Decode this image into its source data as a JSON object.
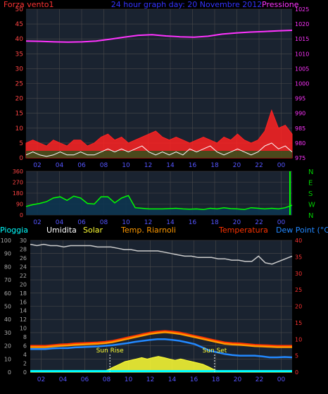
{
  "chart_data": [
    {
      "type": "line",
      "header": {
        "left": "Forza vento1",
        "center": "24 hour graph day: 20 Novembre 2012",
        "right": "Pressione"
      },
      "x_ticks": [
        "02",
        "04",
        "06",
        "08",
        "10",
        "12",
        "14",
        "16",
        "18",
        "20",
        "22",
        "00"
      ],
      "y_left": {
        "ylim": [
          0,
          50
        ],
        "ticks": [
          "0",
          "5",
          "10",
          "15",
          "20",
          "25",
          "30",
          "35",
          "40",
          "45",
          "50"
        ]
      },
      "y_right": {
        "ylim": [
          975,
          1025
        ],
        "ticks": [
          "975",
          "980",
          "985",
          "990",
          "995",
          "1000",
          "1005",
          "1010",
          "1015",
          "1020",
          "1025"
        ]
      },
      "series": [
        {
          "key": "pressure",
          "color": "#ff33ff",
          "axis": "right",
          "values": [
            1014.3,
            1014.2,
            1014.0,
            1013.9,
            1014.0,
            1014.3,
            1014.9,
            1015.6,
            1016.2,
            1016.4,
            1016.0,
            1015.7,
            1015.6,
            1015.9,
            1016.6,
            1017.0,
            1017.3,
            1017.5,
            1017.7,
            1017.9
          ]
        },
        {
          "key": "gust",
          "color": "#ff2222",
          "axis": "left",
          "values": [
            5,
            6,
            5,
            4,
            6,
            5,
            4,
            6,
            6,
            4,
            5,
            7,
            8,
            6,
            7,
            5,
            6,
            7,
            8,
            9,
            7,
            6,
            7,
            6,
            5,
            6,
            7,
            6,
            5,
            7,
            6,
            8,
            6,
            5,
            6,
            9,
            16,
            10,
            11,
            8
          ]
        },
        {
          "key": "wind",
          "color": "#ffffff",
          "axis": "left",
          "values": [
            1,
            2,
            1,
            0.5,
            1,
            2,
            1,
            1,
            2,
            1,
            1,
            2,
            3,
            2,
            3,
            2,
            3,
            4,
            2,
            1,
            2,
            1,
            2,
            1,
            3,
            2,
            3,
            4,
            2,
            1,
            2,
            3,
            2,
            1,
            2,
            4,
            5,
            3,
            4,
            2
          ]
        }
      ]
    },
    {
      "type": "line",
      "x_ticks": [
        "02",
        "04",
        "06",
        "08",
        "10",
        "12",
        "14",
        "16",
        "18",
        "20",
        "22",
        "00"
      ],
      "y_left": {
        "ylim": [
          0,
          360
        ],
        "ticks": [
          "0",
          "90",
          "180",
          "270",
          "360"
        ]
      },
      "y_right_labels": [
        "N",
        "W",
        "S",
        "E",
        "N"
      ],
      "series": [
        {
          "key": "direction",
          "color": "#00ff00",
          "values": [
            70,
            85,
            95,
            110,
            140,
            150,
            120,
            155,
            140,
            95,
            90,
            150,
            150,
            100,
            140,
            160,
            60,
            55,
            50,
            50,
            50,
            52,
            55,
            50,
            48,
            50,
            45,
            55,
            50,
            60,
            52,
            50,
            45,
            60,
            55,
            50,
            55,
            50,
            60,
            80
          ]
        }
      ]
    },
    {
      "type": "line",
      "legend": {
        "rain": "Pioggia",
        "humidity": "Umidita",
        "solar": "Solar",
        "chill": "Temp. Riarnoli",
        "temperature": "Temperatura",
        "dewpoint": "Dew Point (°C)"
      },
      "annotations": {
        "sunrise": "Sun Rise",
        "sunset": "Sun Set",
        "sunrise_hour": 7.3,
        "sunset_hour": 16.9
      },
      "x_ticks": [
        "02",
        "04",
        "06",
        "08",
        "10",
        "12",
        "14",
        "16",
        "18",
        "20",
        "22",
        "00"
      ],
      "y_left1": {
        "ylim": [
          0,
          100
        ],
        "ticks": [
          "0",
          "10",
          "20",
          "30",
          "40",
          "50",
          "60",
          "70",
          "80",
          "90",
          "100"
        ]
      },
      "y_left2": {
        "ylim": [
          0,
          30
        ],
        "ticks": [
          "0",
          "2",
          "4",
          "6",
          "8",
          "10",
          "12",
          "14",
          "16",
          "18",
          "20",
          "22",
          "24",
          "26",
          "28",
          "30"
        ]
      },
      "y_right": {
        "ylim": [
          0,
          40
        ],
        "ticks": [
          "0",
          "5",
          "10",
          "15",
          "20",
          "25",
          "30",
          "35",
          "40"
        ]
      },
      "series": [
        {
          "key": "humidity",
          "color": "#cccccc",
          "axis": "left1",
          "values": [
            97,
            96,
            97,
            96,
            96,
            95,
            96,
            96,
            96,
            96,
            95,
            95,
            95,
            94,
            93,
            93,
            92,
            92,
            92,
            92,
            91,
            90,
            89,
            88,
            88,
            87,
            87,
            87,
            86,
            86,
            85,
            85,
            84,
            84,
            88,
            83,
            82,
            84,
            86,
            88
          ]
        },
        {
          "key": "temperature",
          "color": "#ff3300",
          "axis": "right",
          "values": [
            8,
            8,
            8,
            8.2,
            8.4,
            8.5,
            8.7,
            8.8,
            8.9,
            9,
            9.2,
            9.5,
            10,
            10.5,
            11,
            11.5,
            12,
            12.3,
            12.5,
            12.3,
            12,
            11.5,
            11,
            10.5,
            10,
            9.5,
            9,
            8.8,
            8.7,
            8.5,
            8.3,
            8.2,
            8.1,
            8,
            8,
            8
          ]
        },
        {
          "key": "chill",
          "color": "#ff9900",
          "axis": "right",
          "values": [
            7.6,
            7.6,
            7.6,
            7.8,
            8,
            8.1,
            8.3,
            8.4,
            8.5,
            8.6,
            8.8,
            9.1,
            9.6,
            10.1,
            10.6,
            11.1,
            11.6,
            11.9,
            12.1,
            11.9,
            11.6,
            11.1,
            10.6,
            10.1,
            9.6,
            9.1,
            8.6,
            8.4,
            8.3,
            8.1,
            7.9,
            7.8,
            7.7,
            7.6,
            7.6,
            7.6
          ]
        },
        {
          "key": "dewpoint",
          "color": "#2288ff",
          "axis": "right",
          "values": [
            7,
            7,
            7,
            7.2,
            7.3,
            7.3,
            7.5,
            7.6,
            7.7,
            7.8,
            8,
            8.2,
            8.5,
            8.8,
            9.2,
            9.5,
            9.8,
            10,
            10,
            9.8,
            9.5,
            9,
            8.5,
            7.5,
            6.5,
            6,
            5.5,
            5.2,
            5,
            5,
            5,
            4.8,
            4.5,
            4.5,
            4.6,
            4.5
          ]
        },
        {
          "key": "solar",
          "color": "#ffff33",
          "axis": "left1",
          "values": [
            0,
            0,
            0,
            0,
            0,
            0,
            0,
            0,
            0,
            0,
            0,
            0,
            0,
            0,
            2,
            4,
            6,
            8,
            9,
            10,
            11,
            10,
            11,
            12,
            11,
            10,
            9,
            10,
            9,
            8,
            7,
            6,
            4,
            2,
            0,
            0,
            0,
            0,
            0,
            0,
            0,
            0,
            0,
            0,
            0,
            0,
            0,
            0
          ]
        },
        {
          "key": "rain",
          "color": "#00ffff",
          "axis": "left1",
          "values": [
            0.5,
            0.5
          ]
        }
      ]
    }
  ],
  "colors": {
    "panel_bg": "#1a2330",
    "grid": "#4a4a4a",
    "axis_left": "#ff4444",
    "axis_right": "#ff33ff",
    "header_center": "#3333ff",
    "tick": "#5555ff"
  }
}
